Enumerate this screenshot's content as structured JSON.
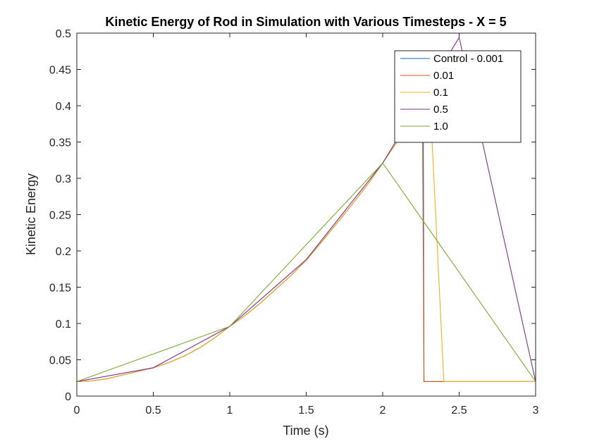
{
  "chart_data": {
    "type": "line",
    "title": "Kinetic Energy of Rod in Simulation with Various Timesteps - X = 5",
    "xlabel": "Time (s)",
    "ylabel": "Kinetic Energy",
    "xlim": [
      0,
      3
    ],
    "ylim": [
      0,
      0.5
    ],
    "xticks": [
      "0",
      "0.5",
      "1",
      "1.5",
      "2",
      "2.5",
      "3"
    ],
    "yticks": [
      "0",
      "0.05",
      "0.1",
      "0.15",
      "0.2",
      "0.25",
      "0.3",
      "0.35",
      "0.4",
      "0.45",
      "0.5"
    ],
    "grid": false,
    "legend_location": "top-right",
    "series": [
      {
        "name": "Control - 0.001",
        "color": "#0072BD",
        "x": [
          0,
          0.1,
          0.2,
          0.3,
          0.4,
          0.5,
          0.6,
          0.7,
          0.8,
          0.9,
          1.0,
          1.1,
          1.2,
          1.3,
          1.4,
          1.5,
          1.6,
          1.7,
          1.8,
          1.9,
          2.0,
          2.1,
          2.2,
          2.26,
          2.265,
          2.27,
          3.0
        ],
        "y": [
          0.02,
          0.021,
          0.024,
          0.029,
          0.034,
          0.039,
          0.046,
          0.055,
          0.066,
          0.08,
          0.096,
          0.111,
          0.128,
          0.147,
          0.166,
          0.187,
          0.212,
          0.238,
          0.264,
          0.291,
          0.321,
          0.352,
          0.386,
          0.405,
          0.405,
          0.02,
          0.02
        ]
      },
      {
        "name": "0.01",
        "color": "#D95319",
        "x": [
          0,
          0.1,
          0.2,
          0.3,
          0.4,
          0.5,
          0.6,
          0.7,
          0.8,
          0.9,
          1.0,
          1.1,
          1.2,
          1.3,
          1.4,
          1.5,
          1.6,
          1.7,
          1.8,
          1.9,
          2.0,
          2.1,
          2.2,
          2.25,
          2.26,
          2.27,
          3.0
        ],
        "y": [
          0.02,
          0.021,
          0.024,
          0.029,
          0.034,
          0.039,
          0.046,
          0.055,
          0.066,
          0.08,
          0.096,
          0.111,
          0.128,
          0.147,
          0.166,
          0.187,
          0.212,
          0.238,
          0.264,
          0.291,
          0.321,
          0.352,
          0.386,
          0.4,
          0.405,
          0.02,
          0.02
        ]
      },
      {
        "name": "0.1",
        "color": "#EDB120",
        "x": [
          0,
          0.1,
          0.2,
          0.3,
          0.4,
          0.5,
          0.6,
          0.7,
          0.8,
          0.9,
          1.0,
          1.1,
          1.2,
          1.3,
          1.4,
          1.5,
          1.6,
          1.7,
          1.8,
          1.9,
          2.0,
          2.1,
          2.2,
          2.3,
          2.4,
          2.5,
          3.0
        ],
        "y": [
          0.02,
          0.021,
          0.024,
          0.029,
          0.034,
          0.039,
          0.046,
          0.055,
          0.066,
          0.08,
          0.096,
          0.111,
          0.128,
          0.147,
          0.166,
          0.187,
          0.212,
          0.238,
          0.264,
          0.291,
          0.321,
          0.352,
          0.386,
          0.45,
          0.02,
          0.02,
          0.02
        ]
      },
      {
        "name": "0.5",
        "color": "#7E2F8E",
        "x": [
          0,
          0.5,
          1.0,
          1.5,
          2.0,
          2.5,
          3.0
        ],
        "y": [
          0.02,
          0.039,
          0.096,
          0.188,
          0.321,
          0.494,
          0.02
        ]
      },
      {
        "name": "1.0",
        "color": "#77AC30",
        "x": [
          0,
          1.0,
          2.0,
          3.0
        ],
        "y": [
          0.02,
          0.096,
          0.321,
          0.02
        ]
      }
    ]
  }
}
